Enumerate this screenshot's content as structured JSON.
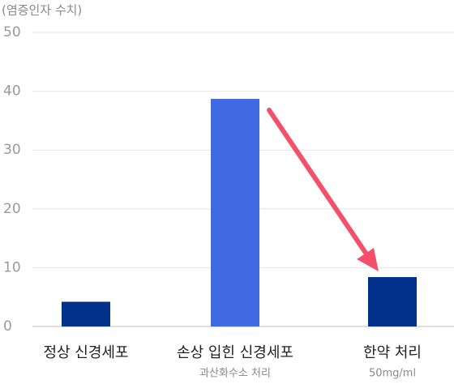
{
  "chart_data": {
    "type": "bar",
    "y_axis_label": "(염증인자 수치)",
    "categories": [
      "정상 신경세포",
      "손상 입힌 신경세포",
      "한약 처리"
    ],
    "category_notes": [
      null,
      "과산화수소 처리",
      "50mg/ml"
    ],
    "values": [
      4.2,
      38.7,
      8.4
    ],
    "colors": [
      "#00318b",
      "#4169e1",
      "#00318b"
    ],
    "ylim": [
      0,
      50
    ],
    "yticks": [
      0,
      10,
      20,
      30,
      40,
      50
    ],
    "grid": true
  }
}
